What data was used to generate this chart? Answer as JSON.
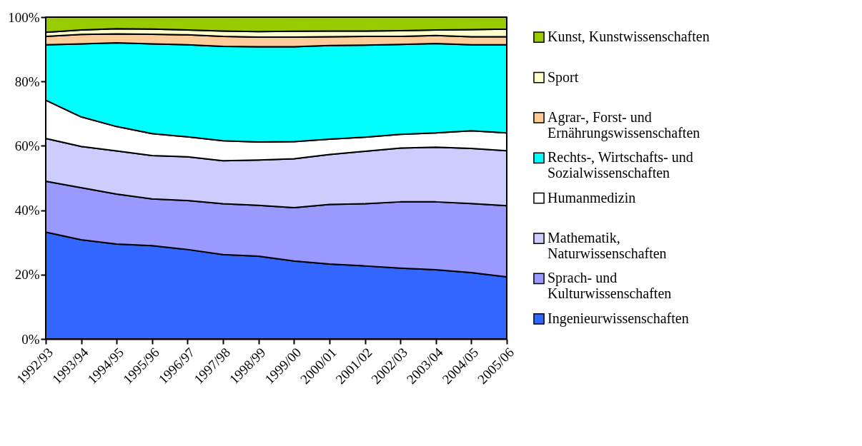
{
  "chart_data": {
    "type": "area",
    "stacked": true,
    "legend": "right",
    "categories": [
      "1992/93",
      "1993/94",
      "1994/95",
      "1995/96",
      "1996/97",
      "1997/98",
      "1998/99",
      "1999/00",
      "2000/01",
      "2001/02",
      "2002/03",
      "2003/04",
      "2004/05",
      "2005/06"
    ],
    "ylim": [
      0,
      100
    ],
    "yticks": [
      {
        "value": 0,
        "label": "0%"
      },
      {
        "value": 20,
        "label": "20%"
      },
      {
        "value": 40,
        "label": "40%"
      },
      {
        "value": 60,
        "label": "60%"
      },
      {
        "value": 80,
        "label": "80%"
      },
      {
        "value": 100,
        "label": "100%"
      }
    ],
    "series": [
      {
        "name": "Ingenieurwissenschaften",
        "color": "#3366ff",
        "values": [
          33.2,
          30.8,
          29.5,
          29.0,
          27.8,
          26.2,
          25.7,
          24.2,
          23.3,
          22.7,
          22.0,
          21.5,
          20.6,
          19.3
        ]
      },
      {
        "name": "Sprach- und Kulturwissenschaften",
        "color": "#9999ff",
        "values": [
          15.8,
          16.2,
          15.5,
          14.5,
          15.2,
          15.8,
          15.8,
          16.6,
          18.5,
          19.3,
          20.6,
          21.1,
          21.5,
          22.1
        ]
      },
      {
        "name": "Mathematik, Naturwissenschaften",
        "color": "#ccccff",
        "values": [
          13.3,
          12.8,
          13.4,
          13.5,
          13.6,
          13.4,
          14.1,
          15.2,
          15.5,
          16.3,
          16.7,
          17.0,
          17.1,
          17.1
        ]
      },
      {
        "name": "Humanmedizin",
        "color": "#ffffff",
        "values": [
          11.9,
          9.2,
          7.6,
          6.8,
          6.2,
          6.2,
          5.6,
          5.3,
          4.8,
          4.4,
          4.3,
          4.4,
          5.5,
          5.5
        ]
      },
      {
        "name": "Rechts-, Wirtschafts- und Sozialwissenschaften",
        "color": "#00ffff",
        "values": [
          17.2,
          22.7,
          26.0,
          27.9,
          28.6,
          29.3,
          29.6,
          29.5,
          29.1,
          28.6,
          27.9,
          27.8,
          26.7,
          27.4
        ]
      },
      {
        "name": "Agrar-, Forst- und Ernährungswissenschaften",
        "color": "#ffcc99",
        "values": [
          2.6,
          2.9,
          2.8,
          3.0,
          3.1,
          3.1,
          3.0,
          3.0,
          2.7,
          2.7,
          2.5,
          2.5,
          2.5,
          2.5
        ]
      },
      {
        "name": "Sport",
        "color": "#ffffcc",
        "values": [
          1.3,
          1.4,
          1.6,
          1.6,
          1.5,
          1.7,
          1.7,
          1.8,
          1.8,
          1.7,
          1.8,
          1.7,
          2.2,
          2.4
        ]
      },
      {
        "name": "Kunst, Kunstwissenschaften",
        "color": "#99cc00",
        "values": [
          4.7,
          4.0,
          3.6,
          3.7,
          4.0,
          4.3,
          4.5,
          4.4,
          4.3,
          4.3,
          4.2,
          4.0,
          3.9,
          3.7
        ]
      }
    ]
  }
}
